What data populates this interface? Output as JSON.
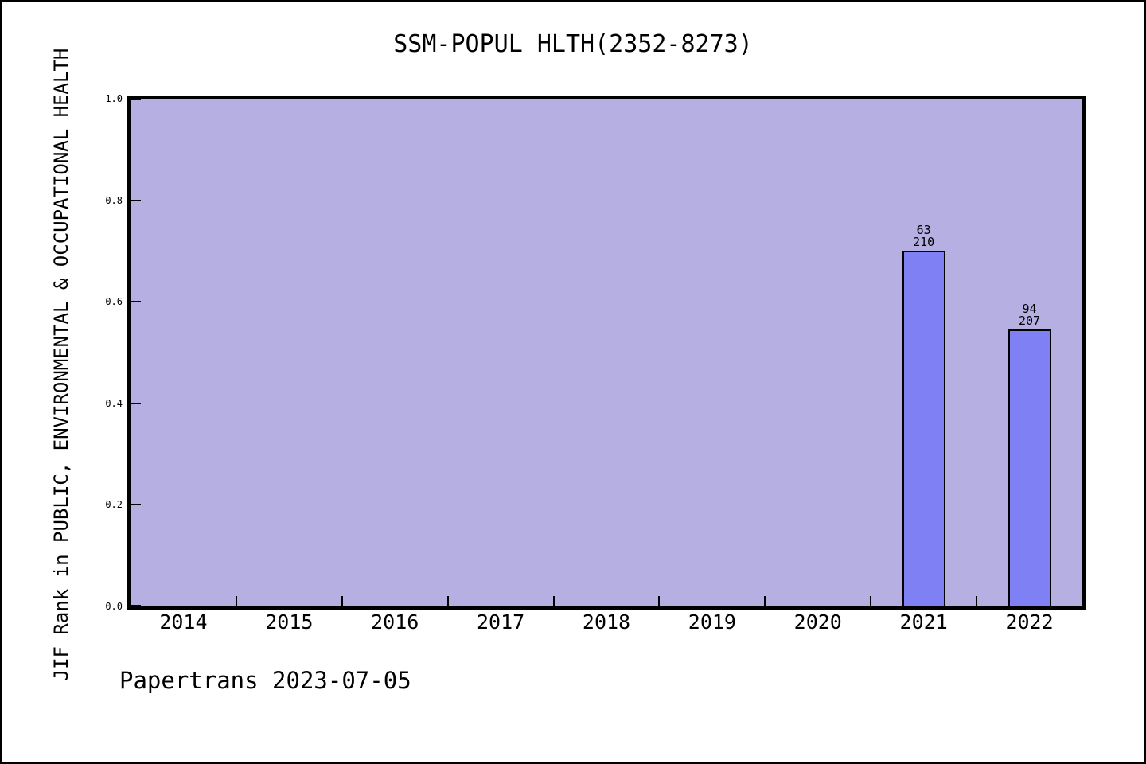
{
  "window": {
    "background": "#ffffff",
    "frame_border_color": "#000000"
  },
  "chart_data": {
    "type": "bar",
    "title": "SSM-POPUL HLTH(2352-8273)",
    "xlabel": "",
    "ylabel": "JIF Rank in PUBLIC, ENVIRONMENTAL & OCCUPATIONAL HEALTH",
    "categories": [
      "2014",
      "2015",
      "2016",
      "2017",
      "2018",
      "2019",
      "2020",
      "2021",
      "2022"
    ],
    "y_ticks": [
      {
        "label": "1.0",
        "value": 1.0
      },
      {
        "label": "0.8",
        "value": 0.8
      },
      {
        "label": "0.6",
        "value": 0.6
      },
      {
        "label": "0.4",
        "value": 0.4
      },
      {
        "label": "0.2",
        "value": 0.2
      },
      {
        "label": "0.0",
        "value": 0.0
      }
    ],
    "ylim": [
      0.0,
      1.0
    ],
    "grid": false,
    "legend": false,
    "series": [
      {
        "name": "JIF Rank fraction",
        "points": [
          {
            "year": "2021",
            "rank_label": "63",
            "total_label": "210",
            "rank": 63,
            "total": 210,
            "value": 0.7
          },
          {
            "year": "2022",
            "rank_label": "94",
            "total_label": "207",
            "rank": 94,
            "total": 207,
            "value": 0.546
          }
        ]
      }
    ],
    "colors": {
      "plot_background": "#b5afe2",
      "bar_fill": "#8080f5",
      "bar_border": "#000000",
      "axis_frame": "#000000",
      "text": "#000000"
    }
  },
  "footer": {
    "text": "Papertrans 2023-07-05"
  }
}
